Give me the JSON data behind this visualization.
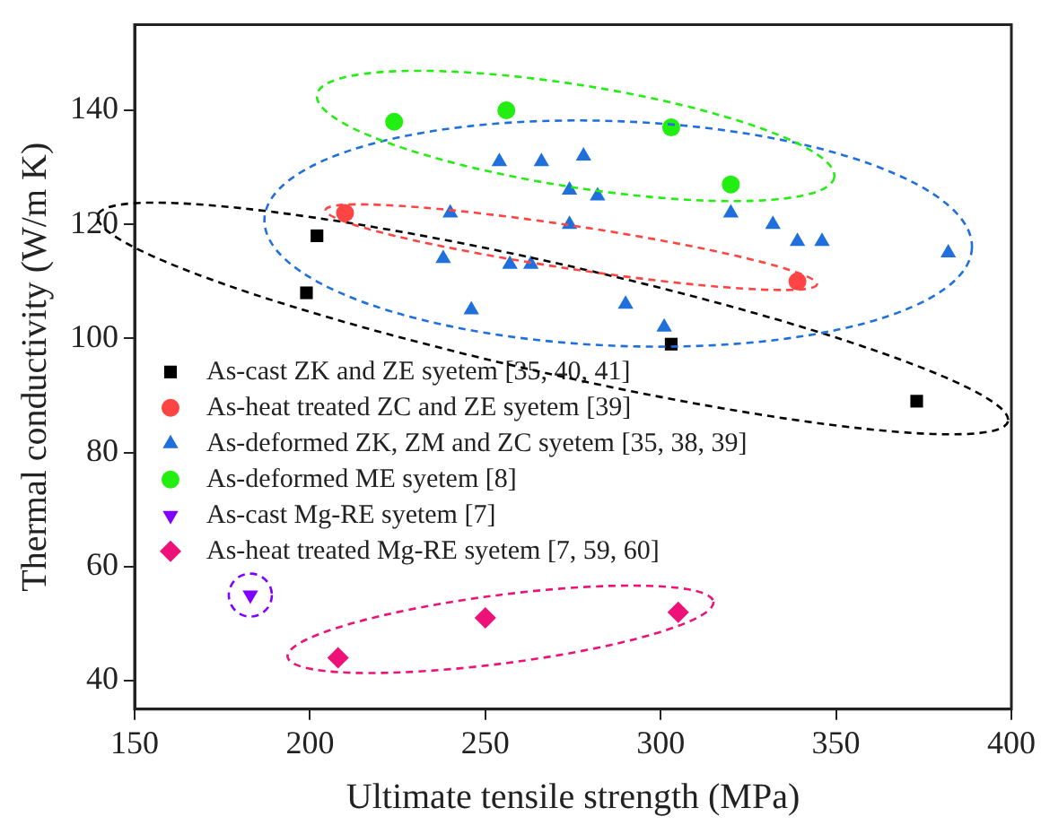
{
  "chart_data": {
    "type": "scatter",
    "xlabel": "Ultimate tensile strength (MPa)",
    "ylabel": "Thermal conductivity (W/m K)",
    "xlim": [
      150,
      400
    ],
    "xticks": [
      150,
      200,
      250,
      300,
      350,
      400
    ],
    "ylim": [
      35,
      155
    ],
    "yticks": [
      40,
      60,
      80,
      100,
      120,
      140
    ],
    "grid": false,
    "legend": "bottom left",
    "series": [
      {
        "name": "As-cast ZK and ZE syetem [35, 40, 41]",
        "color": "#000000",
        "marker": "square",
        "x": [
          199,
          202,
          303,
          373
        ],
        "values": [
          108,
          118,
          99,
          89
        ]
      },
      {
        "name": "As-heat treated ZC and ZE syetem [39]",
        "color": "#ff4444",
        "marker": "circle",
        "x": [
          210,
          339
        ],
        "values": [
          122,
          110
        ]
      },
      {
        "name": "As-deformed ZK, ZM and ZC syetem [35, 38, 39]",
        "color": "#1f6fdc",
        "marker": "triangle",
        "x": [
          254,
          266,
          278,
          274,
          282,
          240,
          274,
          320,
          332,
          339,
          346,
          382,
          238,
          257,
          263,
          290,
          246,
          301
        ],
        "values": [
          131,
          131,
          132,
          126,
          125,
          122,
          120,
          122,
          120,
          117,
          117,
          115,
          114,
          113,
          113,
          106,
          105,
          102
        ]
      },
      {
        "name": "As-deformed ME syetem [8]",
        "color": "#22ee11",
        "marker": "circle",
        "x": [
          224,
          256,
          303,
          320
        ],
        "values": [
          138,
          140,
          137,
          127
        ]
      },
      {
        "name": "As-cast Mg-RE syetem [7]",
        "color": "#8000ff",
        "marker": "triangle-down",
        "x": [
          183
        ],
        "values": [
          55
        ]
      },
      {
        "name": "As-heat treated Mg-RE syetem [7, 59, 60]",
        "color": "#ee1177",
        "marker": "diamond",
        "x": [
          250,
          305,
          208
        ],
        "values": [
          51,
          52,
          44
        ]
      }
    ]
  }
}
